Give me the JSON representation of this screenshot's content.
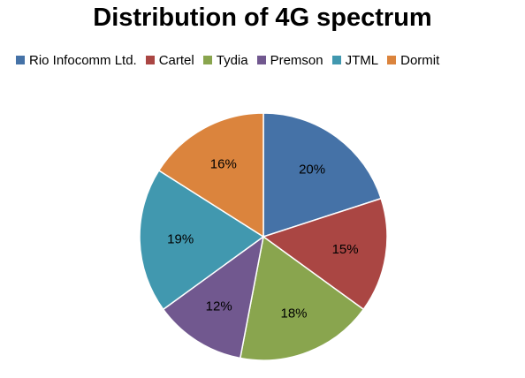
{
  "chart_data": {
    "type": "pie",
    "title": "Distribution of 4G spectrum",
    "legend_position": "top",
    "slices": [
      {
        "name": "Rio Infocomm Ltd.",
        "value": 20,
        "label": "20%",
        "color": "#4572A7"
      },
      {
        "name": "Cartel",
        "value": 15,
        "label": "15%",
        "color": "#AA4643"
      },
      {
        "name": "Tydia",
        "value": 18,
        "label": "18%",
        "color": "#89A54E"
      },
      {
        "name": "Premson",
        "value": 12,
        "label": "12%",
        "color": "#71588F"
      },
      {
        "name": "JTML",
        "value": 19,
        "label": "19%",
        "color": "#4198AF"
      },
      {
        "name": "Dormit",
        "value": 16,
        "label": "16%",
        "color": "#DB843D"
      }
    ]
  }
}
